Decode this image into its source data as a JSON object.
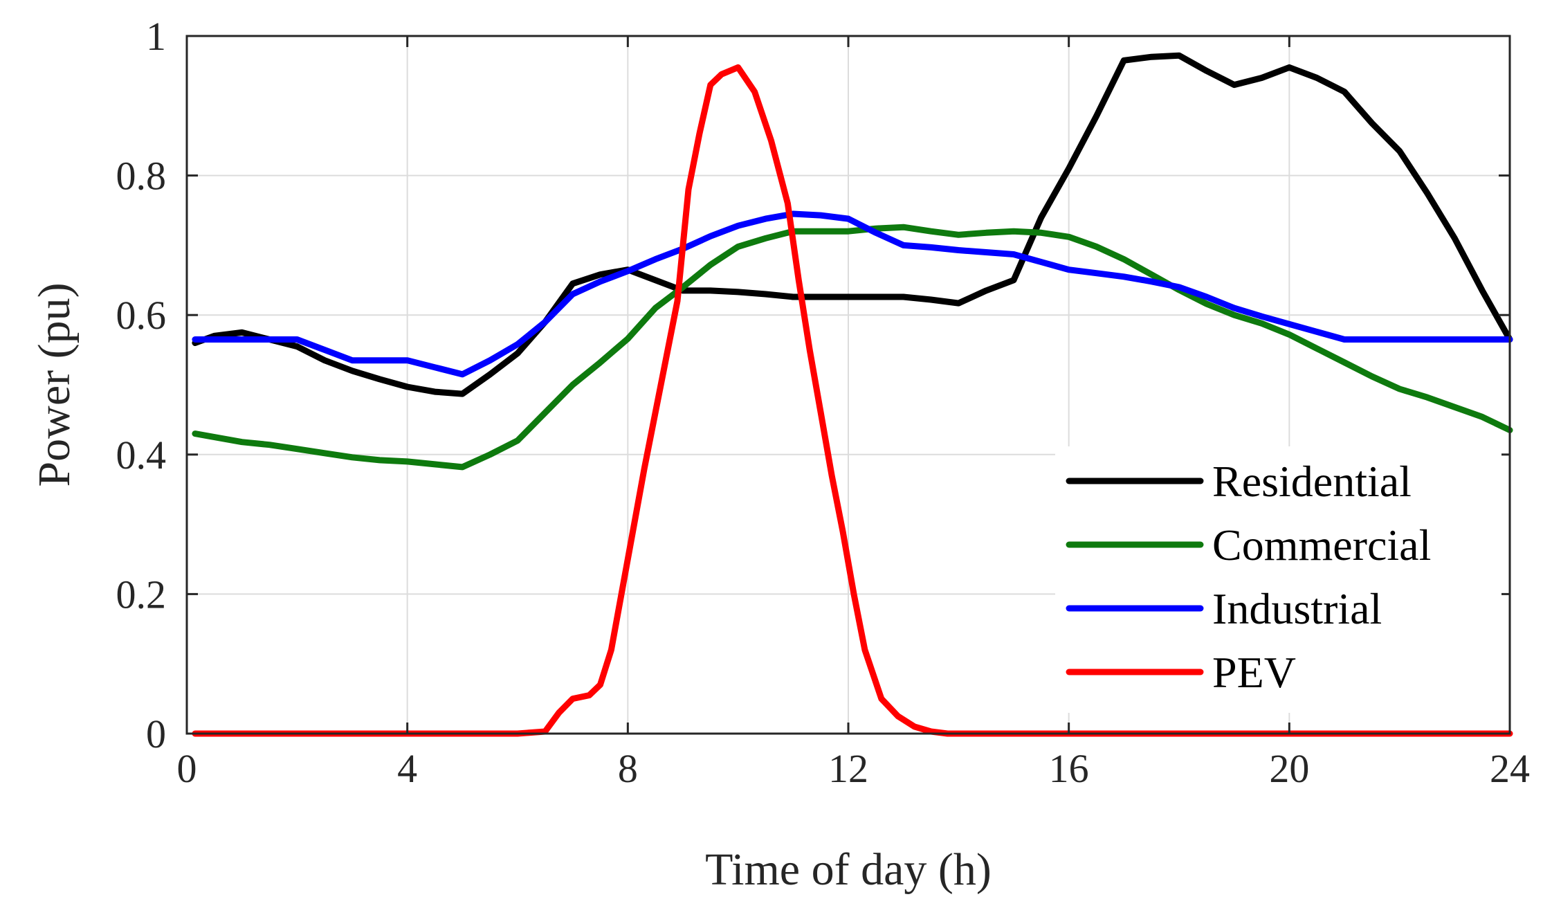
{
  "chart_data": {
    "type": "line",
    "title": "",
    "xlabel": "Time of day (h)",
    "ylabel": "Power (pu)",
    "xlim": [
      0,
      24
    ],
    "ylim": [
      0,
      1
    ],
    "xticks": [
      0,
      4,
      8,
      12,
      16,
      20,
      24
    ],
    "yticks": [
      0,
      0.2,
      0.4,
      0.6,
      0.8,
      1
    ],
    "xtick_labels": [
      "0",
      "4",
      "8",
      "12",
      "16",
      "20",
      "24"
    ],
    "ytick_labels": [
      "0",
      "0.2",
      "0.4",
      "0.6",
      "0.8",
      "1"
    ],
    "grid": true,
    "legend_position": "bottom-right",
    "series": [
      {
        "name": "Residential",
        "color": "#000000",
        "x": [
          0.15,
          0.5,
          1,
          1.5,
          2,
          2.5,
          3,
          3.5,
          4,
          4.5,
          5,
          5.5,
          6,
          6.5,
          7,
          7.5,
          8,
          8.5,
          9,
          9.5,
          10,
          10.5,
          11,
          11.5,
          12,
          12.5,
          13,
          13.5,
          14,
          14.5,
          15,
          15.5,
          16,
          16.5,
          17,
          17.5,
          18,
          18.5,
          19,
          19.5,
          20,
          20.5,
          21,
          21.5,
          22,
          22.5,
          23,
          23.5,
          24
        ],
        "values": [
          0.56,
          0.57,
          0.575,
          0.565,
          0.555,
          0.535,
          0.52,
          0.508,
          0.497,
          0.49,
          0.487,
          0.515,
          0.545,
          0.59,
          0.645,
          0.658,
          0.665,
          0.65,
          0.635,
          0.635,
          0.633,
          0.63,
          0.626,
          0.626,
          0.626,
          0.626,
          0.626,
          0.622,
          0.617,
          0.635,
          0.65,
          0.74,
          0.81,
          0.885,
          0.965,
          0.97,
          0.972,
          0.95,
          0.93,
          0.94,
          0.955,
          0.94,
          0.92,
          0.875,
          0.835,
          0.775,
          0.71,
          0.635,
          0.565
        ]
      },
      {
        "name": "Commercial",
        "color": "#0e7a0e",
        "x": [
          0.15,
          0.5,
          1,
          1.5,
          2,
          2.5,
          3,
          3.5,
          4,
          4.5,
          5,
          5.5,
          6,
          6.5,
          7,
          7.5,
          8,
          8.5,
          9,
          9.5,
          10,
          10.5,
          11,
          11.5,
          12,
          12.5,
          13,
          13.5,
          14,
          14.5,
          15,
          15.5,
          16,
          16.5,
          17,
          17.5,
          18,
          18.5,
          19,
          19.5,
          20,
          20.5,
          21,
          21.5,
          22,
          22.5,
          23,
          23.5,
          24
        ],
        "values": [
          0.43,
          0.425,
          0.418,
          0.414,
          0.408,
          0.402,
          0.396,
          0.392,
          0.39,
          0.386,
          0.382,
          0.4,
          0.42,
          0.46,
          0.5,
          0.532,
          0.566,
          0.61,
          0.64,
          0.672,
          0.698,
          0.71,
          0.72,
          0.72,
          0.72,
          0.724,
          0.726,
          0.72,
          0.715,
          0.718,
          0.72,
          0.718,
          0.712,
          0.698,
          0.68,
          0.658,
          0.636,
          0.616,
          0.6,
          0.588,
          0.572,
          0.552,
          0.532,
          0.512,
          0.494,
          0.482,
          0.468,
          0.454,
          0.435
        ]
      },
      {
        "name": "Industrial",
        "color": "#0000ff",
        "x": [
          0.15,
          0.5,
          1,
          1.5,
          2,
          2.5,
          3,
          3.5,
          4,
          4.5,
          5,
          5.5,
          6,
          6.5,
          7,
          7.5,
          8,
          8.5,
          9,
          9.5,
          10,
          10.5,
          11,
          11.5,
          12,
          12.5,
          13,
          13.5,
          14,
          14.5,
          15,
          15.5,
          16,
          16.5,
          17,
          17.5,
          18,
          18.5,
          19,
          19.5,
          20,
          20.5,
          21,
          21.5,
          22,
          22.5,
          23,
          23.5,
          24
        ],
        "values": [
          0.565,
          0.565,
          0.565,
          0.565,
          0.565,
          0.55,
          0.535,
          0.535,
          0.535,
          0.525,
          0.515,
          0.535,
          0.558,
          0.59,
          0.63,
          0.648,
          0.663,
          0.68,
          0.695,
          0.713,
          0.728,
          0.738,
          0.745,
          0.743,
          0.738,
          0.718,
          0.7,
          0.697,
          0.693,
          0.69,
          0.687,
          0.676,
          0.665,
          0.66,
          0.655,
          0.648,
          0.64,
          0.626,
          0.61,
          0.598,
          0.587,
          0.576,
          0.565,
          0.565,
          0.565,
          0.565,
          0.565,
          0.565,
          0.565
        ]
      },
      {
        "name": "PEV",
        "color": "#ff0000",
        "x": [
          0.15,
          1,
          2,
          3,
          4,
          5,
          6,
          6.5,
          6.75,
          7,
          7.3,
          7.5,
          7.7,
          8,
          8.3,
          8.6,
          8.9,
          9.1,
          9.3,
          9.5,
          9.7,
          10,
          10.3,
          10.6,
          10.9,
          11.1,
          11.3,
          11.5,
          11.7,
          11.9,
          12.1,
          12.3,
          12.6,
          12.9,
          13.2,
          13.5,
          13.8,
          14,
          15,
          16,
          18,
          20,
          22,
          24
        ],
        "values": [
          0,
          0,
          0,
          0,
          0,
          0,
          0,
          0.003,
          0.03,
          0.05,
          0.055,
          0.07,
          0.12,
          0.25,
          0.38,
          0.5,
          0.62,
          0.78,
          0.86,
          0.93,
          0.945,
          0.955,
          0.92,
          0.85,
          0.76,
          0.65,
          0.55,
          0.46,
          0.37,
          0.29,
          0.2,
          0.12,
          0.05,
          0.025,
          0.01,
          0.003,
          0,
          0,
          0,
          0,
          0,
          0,
          0,
          0
        ]
      }
    ]
  }
}
